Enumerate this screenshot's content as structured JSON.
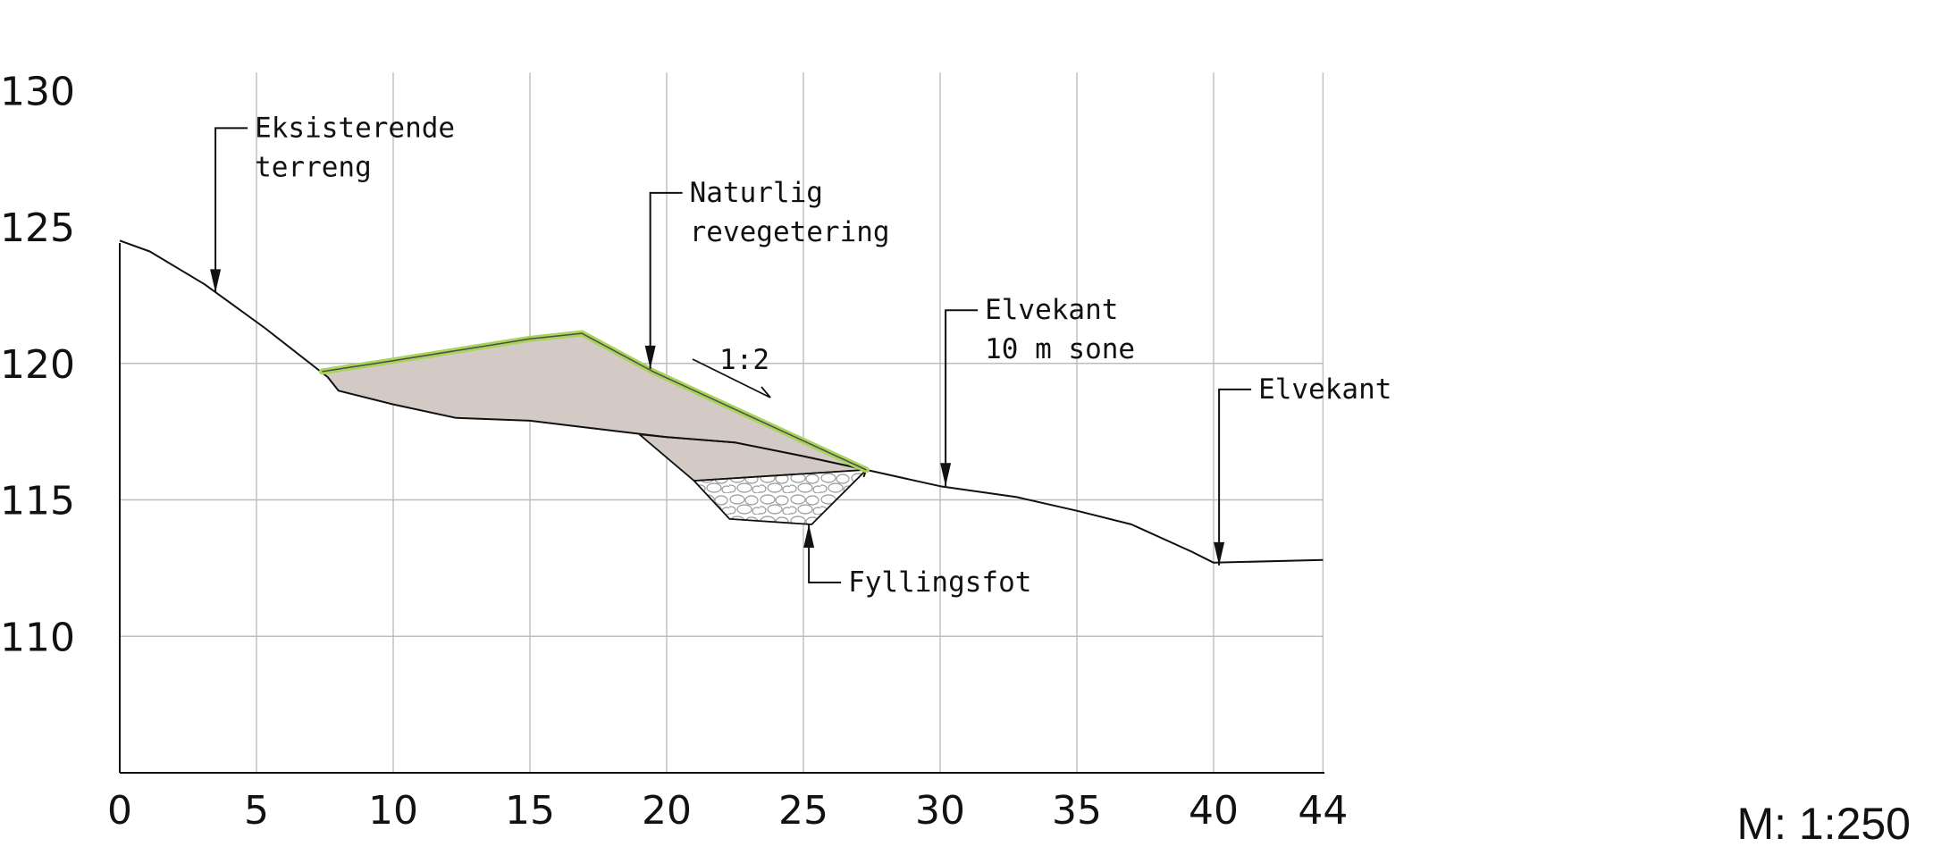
{
  "chart_data": {
    "type": "cross-section",
    "x_ticks": [
      "0",
      "5",
      "10",
      "15",
      "20",
      "25",
      "30",
      "35",
      "40",
      "44"
    ],
    "y_ticks": [
      "110",
      "115",
      "120",
      "125",
      "130"
    ],
    "xlim": [
      0,
      44
    ],
    "ylim": [
      105,
      130
    ],
    "grid": true,
    "existing_terrain": [
      [
        0,
        124.5
      ],
      [
        1.1,
        124.1
      ],
      [
        3.1,
        122.9
      ],
      [
        5.3,
        121.3
      ],
      [
        7.6,
        119.5
      ],
      [
        8,
        119
      ],
      [
        10,
        118.5
      ],
      [
        12.3,
        118
      ],
      [
        15,
        117.9
      ],
      [
        17.5,
        117.6
      ],
      [
        20,
        117.3
      ],
      [
        22.5,
        117.1
      ],
      [
        25,
        116.6
      ],
      [
        27.3,
        116.1
      ],
      [
        30,
        115.5
      ],
      [
        32.8,
        115.1
      ],
      [
        35,
        114.6
      ],
      [
        37,
        114.1
      ],
      [
        39.2,
        113.1
      ],
      [
        40,
        112.7
      ],
      [
        44,
        112.8
      ]
    ],
    "fill_body": [
      [
        7.4,
        119.7
      ],
      [
        10,
        120.1
      ],
      [
        15,
        120.9
      ],
      [
        16.9,
        121.1
      ],
      [
        19.5,
        119.7
      ],
      [
        27.3,
        116.1
      ],
      [
        25,
        116.6
      ],
      [
        22.5,
        117.1
      ],
      [
        20,
        117.3
      ],
      [
        17.5,
        117.6
      ],
      [
        15,
        117.9
      ],
      [
        12.3,
        118
      ],
      [
        10,
        118.5
      ],
      [
        8,
        119
      ]
    ],
    "fill_base": [
      [
        19,
        117.4
      ],
      [
        21,
        115.7
      ],
      [
        27.3,
        116.1
      ],
      [
        25,
        116.6
      ],
      [
        22.5,
        117.1
      ],
      [
        20,
        117.3
      ]
    ],
    "toe_stone": [
      [
        21,
        115.7
      ],
      [
        27.3,
        116.1
      ],
      [
        25.3,
        114.1
      ],
      [
        22.3,
        114.3
      ]
    ],
    "revegetation_line": [
      [
        7.4,
        119.7
      ],
      [
        10,
        120.1
      ],
      [
        15,
        120.9
      ],
      [
        16.9,
        121.1
      ],
      [
        19.5,
        119.7
      ],
      [
        27.3,
        116.1
      ]
    ],
    "colors": {
      "fill": "#d3cac6",
      "vegetation": "#a9d35a",
      "line": "#111111",
      "grid": "#bdbdbd"
    },
    "annotations": [
      {
        "lines": [
          "Eksisterende",
          "terreng"
        ],
        "target": [
          3.5,
          122.6
        ]
      },
      {
        "lines": [
          "Naturlig",
          "revegetering"
        ],
        "target": [
          19.4,
          119.8
        ]
      },
      {
        "lines": [
          "Elvekant",
          "10 m sone"
        ],
        "target": [
          30.2,
          115.5
        ]
      },
      {
        "lines": [
          "Elvekant"
        ],
        "target": [
          40.2,
          112.6
        ]
      },
      {
        "lines": [
          "Fyllingsfot"
        ],
        "target": [
          25.2,
          114.1
        ]
      }
    ],
    "slope_label": "1:2"
  },
  "scale": {
    "label": "M: 1:250"
  }
}
